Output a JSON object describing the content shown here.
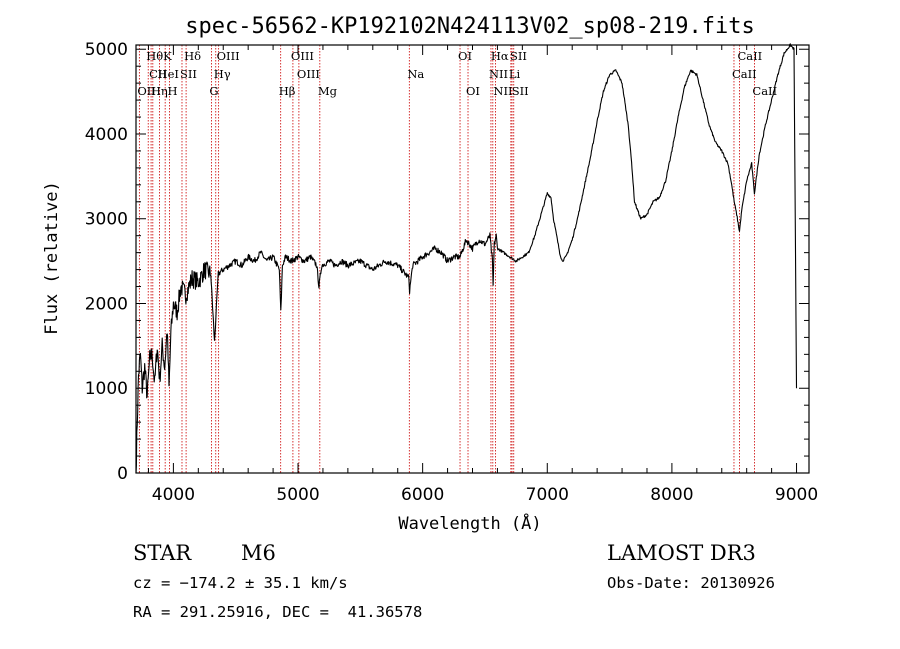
{
  "chart_data": {
    "type": "line",
    "title": "spec-56562-KP192102N424113V02_sp08-219.fits",
    "xlabel": "Wavelength (Å)",
    "ylabel": "Flux (relative)",
    "xlim": [
      3700,
      9100
    ],
    "ylim": [
      0,
      5050
    ],
    "x_ticks": [
      4000,
      5000,
      6000,
      7000,
      8000,
      9000
    ],
    "y_ticks": [
      0,
      1000,
      2000,
      3000,
      4000,
      5000
    ],
    "series": [
      {
        "name": "flux",
        "x": [
          3700,
          3710,
          3720,
          3735,
          3750,
          3770,
          3790,
          3810,
          3830,
          3850,
          3870,
          3890,
          3910,
          3930,
          3950,
          3965,
          3980,
          4000,
          4030,
          4060,
          4100,
          4150,
          4200,
          4250,
          4300,
          4330,
          4360,
          4400,
          4450,
          4500,
          4550,
          4600,
          4650,
          4700,
          4750,
          4800,
          4850,
          4862,
          4875,
          4900,
          4950,
          5000,
          5050,
          5100,
          5150,
          5168,
          5190,
          5250,
          5300,
          5350,
          5400,
          5500,
          5600,
          5700,
          5800,
          5890,
          5895,
          5920,
          6000,
          6050,
          6100,
          6150,
          6200,
          6250,
          6300,
          6350,
          6400,
          6450,
          6500,
          6540,
          6560,
          6565,
          6575,
          6590,
          6600,
          6650,
          6700,
          6750,
          6800,
          6850,
          6900,
          6950,
          7000,
          7030,
          7050,
          7100,
          7120,
          7150,
          7200,
          7250,
          7300,
          7350,
          7400,
          7450,
          7500,
          7550,
          7600,
          7650,
          7680,
          7700,
          7750,
          7800,
          7850,
          7900,
          7950,
          8000,
          8050,
          8100,
          8150,
          8200,
          8250,
          8300,
          8350,
          8400,
          8450,
          8480,
          8500,
          8520,
          8542,
          8560,
          8600,
          8640,
          8662,
          8700,
          8750,
          8800,
          8850,
          8900,
          8950,
          8980,
          9000
        ],
        "y": [
          0,
          600,
          1150,
          1400,
          1000,
          1250,
          900,
          1350,
          1400,
          1050,
          1500,
          1100,
          1500,
          1250,
          1700,
          1000,
          1650,
          2000,
          1900,
          2200,
          2100,
          2300,
          2250,
          2400,
          2350,
          1550,
          2350,
          2400,
          2450,
          2500,
          2450,
          2550,
          2500,
          2600,
          2500,
          2550,
          2400,
          1900,
          2450,
          2550,
          2500,
          2550,
          2500,
          2550,
          2450,
          2200,
          2450,
          2500,
          2450,
          2500,
          2450,
          2500,
          2400,
          2500,
          2450,
          2300,
          2150,
          2450,
          2550,
          2600,
          2650,
          2600,
          2500,
          2550,
          2550,
          2750,
          2650,
          2750,
          2700,
          2800,
          2500,
          2200,
          2700,
          2800,
          2650,
          2600,
          2550,
          2500,
          2550,
          2600,
          2800,
          3050,
          3300,
          3250,
          3000,
          2600,
          2500,
          2550,
          2750,
          3050,
          3400,
          3750,
          4150,
          4500,
          4700,
          4750,
          4600,
          4100,
          3600,
          3200,
          3000,
          3050,
          3200,
          3250,
          3450,
          3800,
          4200,
          4550,
          4750,
          4700,
          4400,
          4100,
          3900,
          3800,
          3650,
          3400,
          3200,
          3050,
          2850,
          3100,
          3450,
          3650,
          3300,
          3750,
          4100,
          4400,
          4700,
          4950,
          5050,
          5000,
          1000
        ]
      }
    ],
    "annotation_lines": [
      {
        "label": "Hθ",
        "wave": 3798,
        "row": 0
      },
      {
        "label": "CII",
        "wave": 3821,
        "row": 1
      },
      {
        "label": "OII",
        "wave": 3727,
        "row": 2
      },
      {
        "label": "Hη",
        "wave": 3835,
        "row": 2
      },
      {
        "label": "K",
        "wave": 3934,
        "row": 0
      },
      {
        "label": "HeI",
        "wave": 3889,
        "row": 1
      },
      {
        "label": "H",
        "wave": 3969,
        "row": 2
      },
      {
        "label": "SII",
        "wave": 4069,
        "row": 1
      },
      {
        "label": "Hδ",
        "wave": 4102,
        "row": 0
      },
      {
        "label": "OIII",
        "wave": 4363,
        "row": 0
      },
      {
        "label": "Hγ",
        "wave": 4340,
        "row": 1
      },
      {
        "label": "G",
        "wave": 4305,
        "row": 2
      },
      {
        "label": "OIII",
        "wave": 4959,
        "row": 0
      },
      {
        "label": "OIII",
        "wave": 5007,
        "row": 1
      },
      {
        "label": "Hβ",
        "wave": 4861,
        "row": 2
      },
      {
        "label": "Mg",
        "wave": 5175,
        "row": 2
      },
      {
        "label": "Na",
        "wave": 5893,
        "row": 1
      },
      {
        "label": "OI",
        "wave": 6300,
        "row": 0
      },
      {
        "label": "OI",
        "wave": 6364,
        "row": 2
      },
      {
        "label": "Hα",
        "wave": 6563,
        "row": 0
      },
      {
        "label": "NII",
        "wave": 6548,
        "row": 1
      },
      {
        "label": "NII",
        "wave": 6584,
        "row": 2
      },
      {
        "label": "SII",
        "wave": 6717,
        "row": 0
      },
      {
        "label": "Li",
        "wave": 6708,
        "row": 1
      },
      {
        "label": "SII",
        "wave": 6731,
        "row": 2
      },
      {
        "label": "CaII",
        "wave": 8542,
        "row": 0
      },
      {
        "label": "CaII",
        "wave": 8498,
        "row": 1
      },
      {
        "label": "CaII",
        "wave": 8662,
        "row": 2
      }
    ],
    "colors": {
      "spectrum": "#000000",
      "lines": "#cc0000"
    }
  },
  "info": {
    "class": "STAR",
    "subclass": "M6",
    "survey": "LAMOST DR3",
    "cz": "cz = −174.2 ± 35.1 km/s",
    "obsdate": "Obs-Date: 20130926",
    "coords": "RA = 291.25916, DEC =  41.36578"
  }
}
